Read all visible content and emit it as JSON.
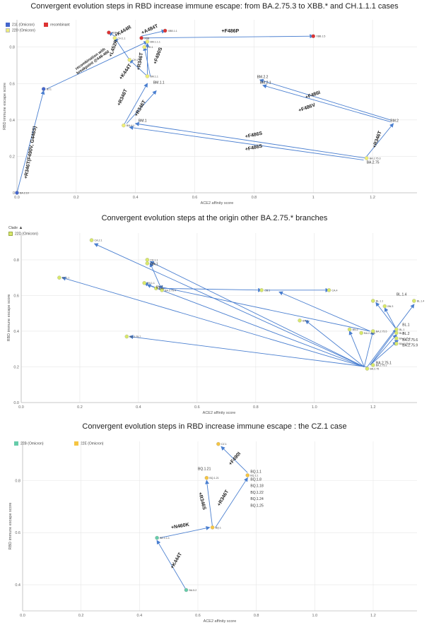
{
  "chart_data": [
    {
      "type": "scatter",
      "title": "Convergent evolution steps in RBD increase immune escape: from BA.2.75.3 to XBB.* and CH.1.1.1 cases",
      "xlabel": "ACE2 affinity score",
      "ylabel": "RBD immune escape score",
      "xlim": [
        0,
        1.35
      ],
      "ylim": [
        0,
        0.95
      ],
      "xticks": [
        "0.0",
        "0.2",
        "0.4",
        "0.6",
        "0.8",
        "1",
        "1.2"
      ],
      "xtick_values": [
        0,
        0.2,
        0.4,
        0.6,
        0.8,
        1.0,
        1.2
      ],
      "yticks": [
        "0",
        "0.2",
        "0.4",
        "0.6",
        "0.8"
      ],
      "ytick_values": [
        0,
        0.2,
        0.4,
        0.6,
        0.8
      ],
      "grid": true,
      "legend_position": "top-left",
      "legend": [
        {
          "name": "21L (Omicron)",
          "color": "#4466cc"
        },
        {
          "name": "recombinant",
          "color": "#dd3333"
        },
        {
          "name": "22D (Omicron)",
          "color": "#eeee77"
        }
      ],
      "points": [
        {
          "label": "BA.2.10",
          "x": 0.0,
          "y": 0.0,
          "color": "#4466cc"
        },
        {
          "label": "BJ.1",
          "x": 0.09,
          "y": 0.57,
          "color": "#4466cc"
        },
        {
          "label": "XBB.1",
          "x": 0.31,
          "y": 0.88,
          "color": "#dd3333"
        },
        {
          "label": "XBB.1.1",
          "x": 0.5,
          "y": 0.89,
          "color": "#dd3333"
        },
        {
          "label": "XBB",
          "x": 0.42,
          "y": 0.85,
          "color": "#dd3333"
        },
        {
          "label": "XBB.1.5",
          "x": 1.0,
          "y": 0.86,
          "color": "#dd3333"
        },
        {
          "label": "CH.1.1",
          "x": 0.33,
          "y": 0.85,
          "color": "#eeee77"
        },
        {
          "label": "BM.1.1.1",
          "x": 0.44,
          "y": 0.83,
          "color": "#eeee77"
        },
        {
          "label": "CH.1",
          "x": 0.43,
          "y": 0.8,
          "color": "#eeee77"
        },
        {
          "label": "CH.1",
          "x": 0.38,
          "y": 0.73,
          "color": "#eeee77"
        },
        {
          "label": "BM.1.1",
          "x": 0.44,
          "y": 0.64,
          "color": "#eeee77"
        },
        {
          "label": "BM.4.1",
          "x": 0.36,
          "y": 0.37,
          "color": "#eeee77"
        },
        {
          "label": "BA.2.75.3",
          "x": 1.18,
          "y": 0.19,
          "color": "#eeee77"
        }
      ],
      "text_labels": [
        {
          "text": "BM.1.1",
          "x": 0.46,
          "y": 0.6
        },
        {
          "text": "BM.1",
          "x": 0.41,
          "y": 0.39
        },
        {
          "text": "BM.2.2",
          "x": 0.81,
          "y": 0.63
        },
        {
          "text": "BM.2.1",
          "x": 0.82,
          "y": 0.6
        },
        {
          "text": "BM.2",
          "x": 1.26,
          "y": 0.39
        },
        {
          "text": "BA.2.75",
          "x": 1.18,
          "y": 0.16
        }
      ],
      "arrows": [
        {
          "from": [
            0.0,
            0.0
          ],
          "to": [
            0.09,
            0.56
          ],
          "label": "+R346T(F490V, G446S)",
          "tx": 0.05,
          "ty": 0.22,
          "rot": -80
        },
        {
          "from": [
            0.1,
            0.57
          ],
          "to": [
            0.44,
            0.83
          ],
          "label": "recombination with\nbreakpoint @446-460",
          "tx": 0.25,
          "ty": 0.73,
          "rot": -35
        },
        {
          "from": [
            0.33,
            0.86
          ],
          "to": [
            0.31,
            0.88
          ],
          "label": "+K444R",
          "tx": 0.36,
          "ty": 0.88,
          "rot": -30
        },
        {
          "from": [
            0.42,
            0.86
          ],
          "to": [
            0.5,
            0.89
          ],
          "label": "+A484T",
          "tx": 0.45,
          "ty": 0.89,
          "rot": -25
        },
        {
          "from": [
            0.42,
            0.85
          ],
          "to": [
            1.0,
            0.86
          ],
          "label": "+F486P",
          "tx": 0.72,
          "ty": 0.88,
          "rot": 0
        },
        {
          "from": [
            0.38,
            0.73
          ],
          "to": [
            0.33,
            0.85
          ],
          "label": "+L452R",
          "tx": 0.33,
          "ty": 0.79,
          "rot": -70
        },
        {
          "from": [
            0.44,
            0.64
          ],
          "to": [
            0.38,
            0.73
          ],
          "label": "+K444T",
          "tx": 0.37,
          "ty": 0.66,
          "rot": -55
        },
        {
          "from": [
            0.44,
            0.64
          ],
          "to": [
            0.44,
            0.82
          ],
          "label": "+R346T",
          "tx": 0.42,
          "ty": 0.72,
          "rot": -80
        },
        {
          "from": [
            0.45,
            0.64
          ],
          "to": [
            0.43,
            0.8
          ],
          "label": "+F490S",
          "tx": 0.48,
          "ty": 0.75,
          "rot": -70
        },
        {
          "from": [
            0.36,
            0.37
          ],
          "to": [
            0.44,
            0.6
          ],
          "label": "+R346T",
          "tx": 0.36,
          "ty": 0.52,
          "rot": -65
        },
        {
          "from": [
            0.37,
            0.38
          ],
          "to": [
            0.47,
            0.56
          ],
          "label": "+R346T",
          "tx": 0.42,
          "ty": 0.46,
          "rot": -60
        },
        {
          "from": [
            1.18,
            0.2
          ],
          "to": [
            1.27,
            0.38
          ],
          "label": "+R346T",
          "tx": 1.22,
          "ty": 0.29,
          "rot": -70
        },
        {
          "from": [
            1.26,
            0.4
          ],
          "to": [
            0.82,
            0.62
          ],
          "label": "+F486I",
          "tx": 1.0,
          "ty": 0.53,
          "rot": -20
        },
        {
          "from": [
            1.26,
            0.39
          ],
          "to": [
            0.83,
            0.59
          ],
          "label": "+F486V",
          "tx": 0.98,
          "ty": 0.46,
          "rot": -20
        },
        {
          "from": [
            1.18,
            0.19
          ],
          "to": [
            0.4,
            0.38
          ],
          "label": "+F486S",
          "tx": 0.8,
          "ty": 0.31,
          "rot": -12
        },
        {
          "from": [
            1.17,
            0.18
          ],
          "to": [
            0.38,
            0.36
          ],
          "label": "+F486S",
          "tx": 0.8,
          "ty": 0.24,
          "rot": -12
        }
      ]
    },
    {
      "type": "scatter",
      "title": "Convergent evolution steps at the origin other BA.2.75.* branches",
      "xlabel": "ACE2 affinity score",
      "ylabel": "RBD immune escape score",
      "xlim": [
        0,
        1.35
      ],
      "ylim": [
        0,
        0.95
      ],
      "xticks": [
        "0.0",
        "0.2",
        "0.4",
        "0.6",
        "0.8",
        "1.0",
        "1.2"
      ],
      "xtick_values": [
        0,
        0.2,
        0.4,
        0.6,
        0.8,
        1.0,
        1.2
      ],
      "yticks": [
        "0.0",
        "0.2",
        "0.4",
        "0.6",
        "0.8"
      ],
      "ytick_values": [
        0,
        0.2,
        0.4,
        0.6,
        0.8
      ],
      "grid": true,
      "legend_position": "top-left",
      "legend_heading": "Clade",
      "legend": [
        {
          "name": "22D (Omicron)",
          "color": "#eeee77"
        }
      ],
      "points": [
        {
          "label": "CA.2.1",
          "x": 0.24,
          "y": 0.91
        },
        {
          "label": "BY.1.1",
          "x": 0.13,
          "y": 0.7
        },
        {
          "label": "CA.1.1",
          "x": 0.43,
          "y": 0.8
        },
        {
          "label": "CA.1",
          "x": 0.43,
          "y": 0.78
        },
        {
          "label": "DV.1.1",
          "x": 0.42,
          "y": 0.67
        },
        {
          "label": "BA.2.75.4",
          "x": 0.48,
          "y": 0.63
        },
        {
          "label": "BN.1",
          "x": 0.46,
          "y": 0.64
        },
        {
          "label": "CB.1",
          "x": 0.82,
          "y": 0.63
        },
        {
          "label": "CA.4",
          "x": 1.05,
          "y": 0.63
        },
        {
          "label": "BR.2",
          "x": 0.95,
          "y": 0.46
        },
        {
          "label": "BA.2.75.7",
          "x": 0.36,
          "y": 0.37
        },
        {
          "label": "BN.2",
          "x": 1.12,
          "y": 0.41
        },
        {
          "label": "BA.2.75.6",
          "x": 1.16,
          "y": 0.39
        },
        {
          "label": "BA.2.75.5",
          "x": 1.2,
          "y": 0.4
        },
        {
          "label": "BL.1.1",
          "x": 1.2,
          "y": 0.57
        },
        {
          "label": "BN.3",
          "x": 1.24,
          "y": 0.54
        },
        {
          "label": "BL.1",
          "x": 1.28,
          "y": 0.41
        },
        {
          "label": "BL.2",
          "x": 1.28,
          "y": 0.39
        },
        {
          "label": "BA.2.75.6",
          "x": 1.28,
          "y": 0.36
        },
        {
          "label": "BA.2.75.9",
          "x": 1.28,
          "y": 0.33
        },
        {
          "label": "BL.1.4",
          "x": 1.34,
          "y": 0.57
        },
        {
          "label": "BA.2.75",
          "x": 1.18,
          "y": 0.19
        },
        {
          "label": "BA.2.75.1",
          "x": 1.2,
          "y": 0.21
        }
      ],
      "text_labels": [
        {
          "text": "CA.1",
          "x": 0.44,
          "y": 0.77
        },
        {
          "text": "BY.1",
          "x": 0.46,
          "y": 0.64
        },
        {
          "text": "BL.1.4",
          "x": 1.28,
          "y": 0.6
        },
        {
          "text": "BL.1",
          "x": 1.3,
          "y": 0.43
        },
        {
          "text": "BL.2",
          "x": 1.3,
          "y": 0.38
        },
        {
          "text": "BA.2.75.6",
          "x": 1.3,
          "y": 0.345
        },
        {
          "text": "BA.2.75.9",
          "x": 1.3,
          "y": 0.315
        },
        {
          "text": "BA.2.75.1",
          "x": 1.21,
          "y": 0.215
        }
      ],
      "arrows": [
        {
          "from": [
            1.17,
            0.2
          ],
          "to": [
            0.25,
            0.89
          ]
        },
        {
          "from": [
            1.17,
            0.2
          ],
          "to": [
            0.14,
            0.7
          ]
        },
        {
          "from": [
            1.17,
            0.2
          ],
          "to": [
            0.44,
            0.79
          ]
        },
        {
          "from": [
            1.17,
            0.2
          ],
          "to": [
            0.43,
            0.66
          ]
        },
        {
          "from": [
            1.17,
            0.2
          ],
          "to": [
            0.97,
            0.46
          ]
        },
        {
          "from": [
            1.17,
            0.2
          ],
          "to": [
            1.12,
            0.4
          ]
        },
        {
          "from": [
            1.17,
            0.2
          ],
          "to": [
            1.2,
            0.4
          ]
        },
        {
          "from": [
            1.18,
            0.2
          ],
          "to": [
            0.37,
            0.37
          ]
        },
        {
          "from": [
            1.18,
            0.2
          ],
          "to": [
            1.34,
            0.55
          ]
        },
        {
          "from": [
            1.19,
            0.21
          ],
          "to": [
            1.28,
            0.41
          ]
        },
        {
          "from": [
            1.19,
            0.21
          ],
          "to": [
            1.28,
            0.38
          ]
        },
        {
          "from": [
            1.19,
            0.21
          ],
          "to": [
            1.28,
            0.34
          ]
        },
        {
          "from": [
            1.28,
            0.41
          ],
          "to": [
            1.21,
            0.56
          ]
        },
        {
          "from": [
            1.28,
            0.41
          ],
          "to": [
            1.24,
            0.53
          ]
        },
        {
          "from": [
            1.28,
            0.41
          ],
          "to": [
            1.28,
            0.33
          ]
        },
        {
          "from": [
            0.48,
            0.63
          ],
          "to": [
            0.44,
            0.78
          ]
        },
        {
          "from": [
            0.48,
            0.63
          ],
          "to": [
            0.42,
            0.67
          ]
        },
        {
          "from": [
            0.48,
            0.64
          ],
          "to": [
            0.82,
            0.63
          ]
        },
        {
          "from": [
            0.83,
            0.63
          ],
          "to": [
            1.05,
            0.63
          ]
        },
        {
          "from": [
            1.19,
            0.4
          ],
          "to": [
            0.47,
            0.65
          ]
        },
        {
          "from": [
            1.19,
            0.4
          ],
          "to": [
            0.88,
            0.62
          ]
        }
      ]
    },
    {
      "type": "scatter",
      "title": "Convergent evolution steps in RBD increase immune escape : the CZ.1 case",
      "xlabel": "ACE2 affinity score",
      "ylabel": "RBD immune escape score",
      "xlim": [
        0,
        1.35
      ],
      "ylim": [
        0.3,
        0.95
      ],
      "xticks": [
        "0.0",
        "0.2",
        "0.4",
        "0.6",
        "0.8",
        "1.0",
        "1.2"
      ],
      "xtick_values": [
        0,
        0.2,
        0.4,
        0.6,
        0.8,
        1.0,
        1.2
      ],
      "yticks": [
        "0.4",
        "0.6",
        "0.8"
      ],
      "ytick_values": [
        0.4,
        0.6,
        0.8
      ],
      "grid": true,
      "legend_position": "top-left",
      "legend": [
        {
          "name": "22B (Omicron)",
          "color": "#66ccaa"
        },
        {
          "name": "22E (Omicron)",
          "color": "#f5c542"
        }
      ],
      "points": [
        {
          "label": "BA.5.2",
          "x": 0.56,
          "y": 0.38,
          "color": "#66ccaa"
        },
        {
          "label": "BE.1.1.1",
          "x": 0.46,
          "y": 0.58,
          "color": "#66ccaa"
        },
        {
          "label": "BQ.1",
          "x": 0.65,
          "y": 0.62,
          "color": "#f5c542"
        },
        {
          "label": "BQ.1.21",
          "x": 0.63,
          "y": 0.81,
          "color": "#f5c542"
        },
        {
          "label": "BQ.1.1",
          "x": 0.77,
          "y": 0.82,
          "color": "#f5c542"
        },
        {
          "label": "CZ.1",
          "x": 0.67,
          "y": 0.94,
          "color": "#f5c542"
        }
      ],
      "text_labels": [
        {
          "text": "BQ.1.21",
          "x": 0.6,
          "y": 0.84
        },
        {
          "text": "BQ.1.1",
          "x": 0.78,
          "y": 0.83
        },
        {
          "text": "BQ.1.8",
          "x": 0.78,
          "y": 0.8
        },
        {
          "text": "BQ.1.18",
          "x": 0.78,
          "y": 0.775
        },
        {
          "text": "BQ.1.22",
          "x": 0.78,
          "y": 0.75
        },
        {
          "text": "BQ.1.24",
          "x": 0.78,
          "y": 0.725
        },
        {
          "text": "BQ.1.25",
          "x": 0.78,
          "y": 0.7
        }
      ],
      "arrows": [
        {
          "from": [
            0.56,
            0.38
          ],
          "to": [
            0.46,
            0.57
          ],
          "label": "+K444T",
          "tx": 0.53,
          "ty": 0.49,
          "rot": -60
        },
        {
          "from": [
            0.47,
            0.58
          ],
          "to": [
            0.64,
            0.62
          ],
          "label": "+N460K",
          "tx": 0.54,
          "ty": 0.62,
          "rot": -10
        },
        {
          "from": [
            0.65,
            0.62
          ],
          "to": [
            0.63,
            0.8
          ],
          "label": "+R346S",
          "tx": 0.61,
          "ty": 0.72,
          "rot": 75
        },
        {
          "from": [
            0.66,
            0.62
          ],
          "to": [
            0.77,
            0.81
          ],
          "label": "+R346T",
          "tx": 0.69,
          "ty": 0.73,
          "rot": -60
        },
        {
          "from": [
            0.77,
            0.83
          ],
          "to": [
            0.68,
            0.93
          ],
          "label": "+F490I",
          "tx": 0.73,
          "ty": 0.88,
          "rot": -50
        }
      ]
    }
  ]
}
